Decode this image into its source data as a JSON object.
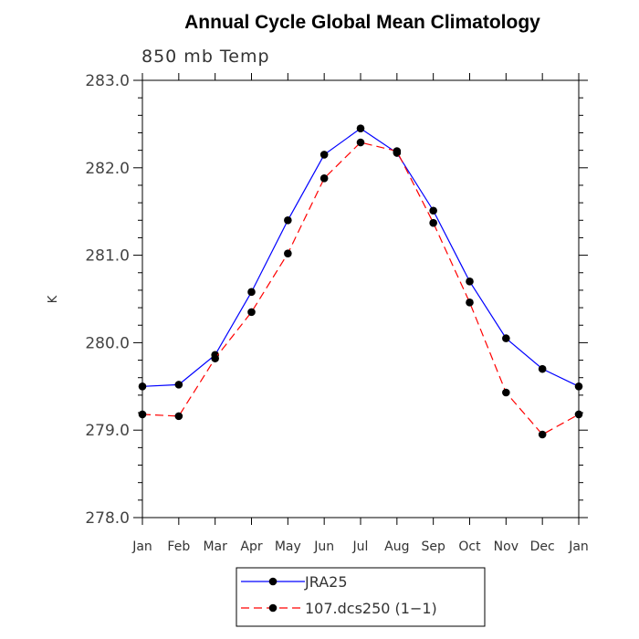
{
  "chart_data": {
    "type": "line",
    "title": "Annual Cycle Global Mean Climatology",
    "subtitle": "850 mb Temp",
    "xlabel": "",
    "ylabel": "K",
    "categories": [
      "Jan",
      "Feb",
      "Mar",
      "Apr",
      "May",
      "Jun",
      "Jul",
      "Aug",
      "Sep",
      "Oct",
      "Nov",
      "Dec",
      "Jan"
    ],
    "ytick_labels": [
      "278.0",
      "279.0",
      "280.0",
      "281.0",
      "282.0",
      "283.0"
    ],
    "ylim": [
      278.0,
      283.0
    ],
    "series": [
      {
        "name": "JRA25",
        "color": "#0000ff",
        "style": "solid",
        "values": [
          279.5,
          279.52,
          279.86,
          280.58,
          281.4,
          282.15,
          282.45,
          282.17,
          281.51,
          280.7,
          280.05,
          279.7,
          279.5
        ]
      },
      {
        "name": "107.dcs250 (1−1)",
        "color": "#ff0000",
        "style": "dashed",
        "values": [
          279.18,
          279.16,
          279.82,
          280.35,
          281.02,
          281.88,
          282.29,
          282.19,
          281.37,
          280.46,
          279.43,
          278.95,
          279.18
        ]
      }
    ],
    "legend_position": "bottom-center",
    "grid": false
  }
}
